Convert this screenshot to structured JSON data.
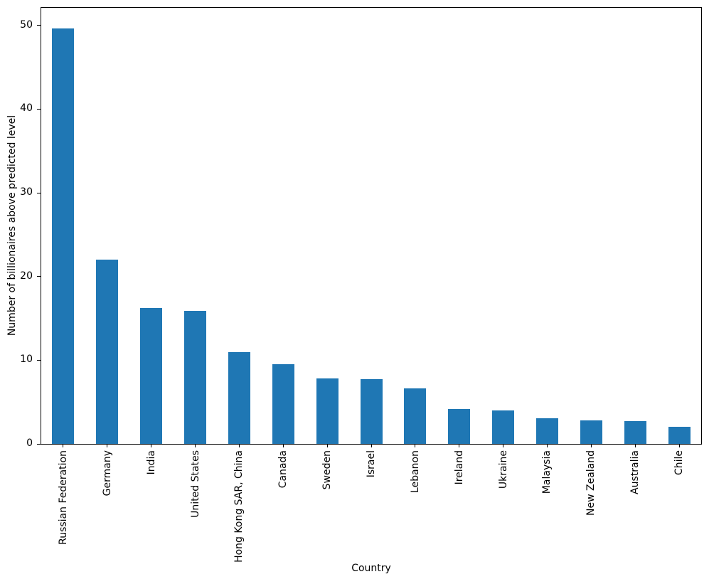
{
  "chart_data": {
    "type": "bar",
    "title": "",
    "xlabel": "Country",
    "ylabel": "Number of billionaires above predicted level",
    "categories": [
      "Russian Federation",
      "Germany",
      "India",
      "United States",
      "Hong Kong SAR, China",
      "Canada",
      "Sweden",
      "Israel",
      "Lebanon",
      "Ireland",
      "Ukraine",
      "Malaysia",
      "New Zealand",
      "Australia",
      "Chile"
    ],
    "values": [
      49.6,
      22.0,
      16.2,
      15.9,
      11.0,
      9.5,
      7.8,
      7.7,
      6.6,
      4.2,
      4.0,
      3.1,
      2.8,
      2.7,
      2.0
    ],
    "yticks": [
      0,
      10,
      20,
      30,
      40,
      50
    ],
    "ylim": [
      0,
      52.1
    ],
    "bar_color": "#1f77b4",
    "bar_width_fraction": 0.5,
    "grid": false,
    "legend": "none",
    "x_tick_rotation_deg": 90
  }
}
